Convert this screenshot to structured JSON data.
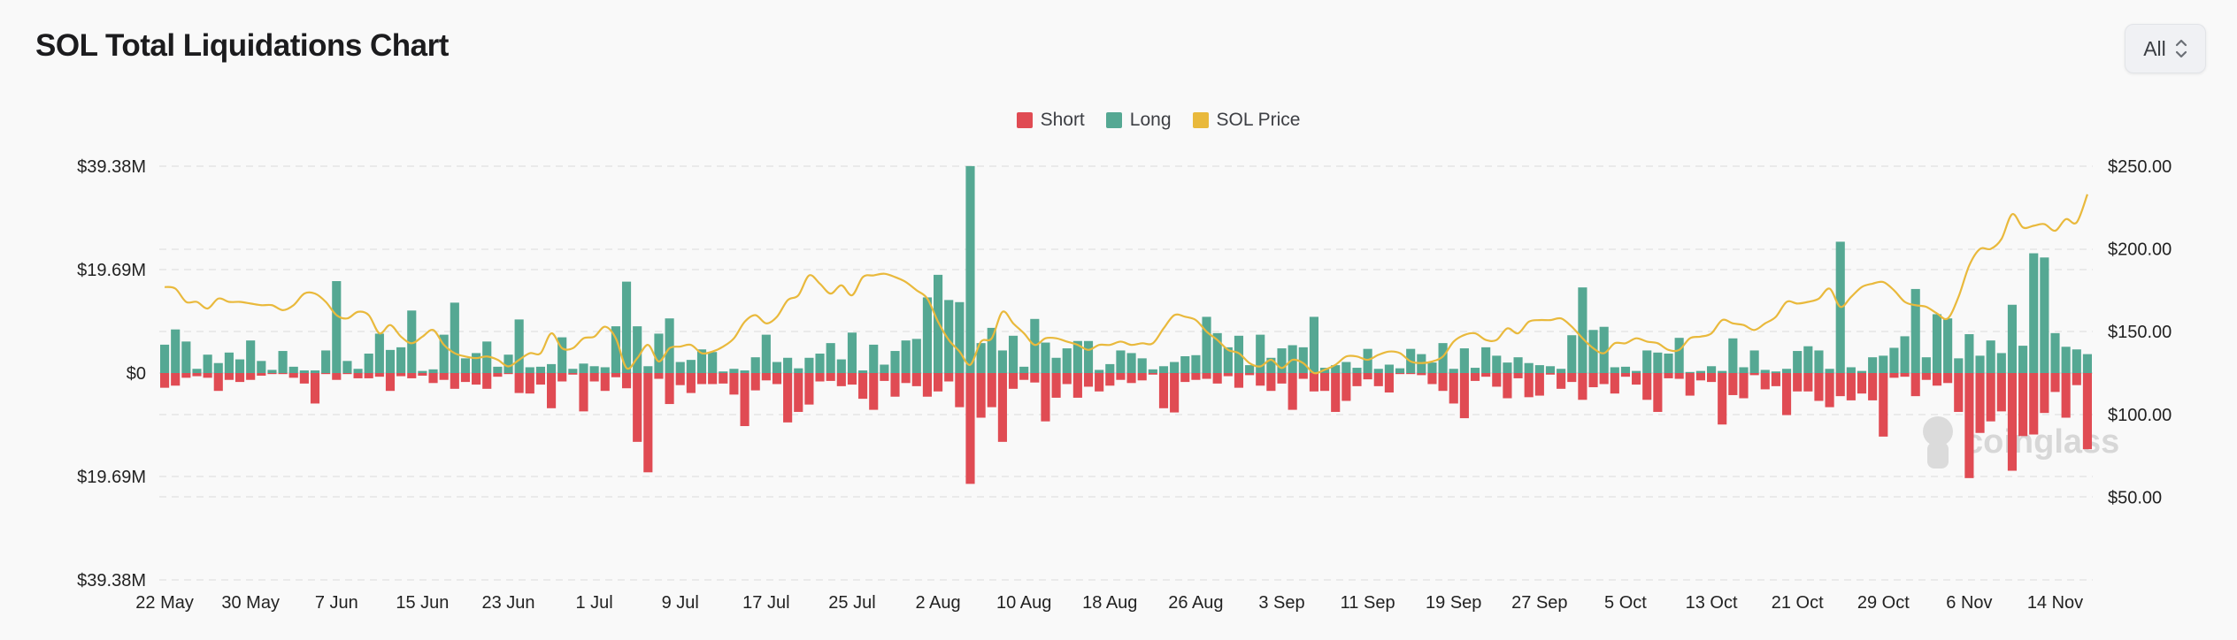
{
  "header": {
    "title": "SOL Total Liquidations Chart",
    "range_select": {
      "value": "All",
      "icon": "chevron-up-down-icon"
    }
  },
  "colors": {
    "short": "#e04b53",
    "long": "#55a893",
    "price": "#e9b93c",
    "grid": "#e6e6e6",
    "background": "#f9f9f9"
  },
  "chart_data": {
    "type": "bar",
    "title": "SOL Total Liquidations Chart",
    "legend": {
      "position": "top",
      "entries": [
        "Short",
        "Long",
        "SOL Price"
      ]
    },
    "grid": true,
    "x_start": "22 May",
    "x_ticks": [
      "22 May",
      "30 May",
      "7 Jun",
      "15 Jun",
      "23 Jun",
      "1 Jul",
      "9 Jul",
      "17 Jul",
      "25 Jul",
      "2 Aug",
      "10 Aug",
      "18 Aug",
      "26 Aug",
      "3 Sep",
      "11 Sep",
      "19 Sep",
      "27 Sep",
      "5 Oct",
      "13 Oct",
      "21 Oct",
      "29 Oct",
      "6 Nov",
      "14 Nov"
    ],
    "y_left": {
      "unit": "USD millions",
      "range": [
        -39.38,
        39.38
      ],
      "ticks": [
        39.38,
        19.69,
        0,
        -19.69,
        -39.38
      ],
      "tick_labels": [
        "$39.38M",
        "$19.69M",
        "$0",
        "$19.69M",
        "$39.38M"
      ]
    },
    "y_right": {
      "unit": "USD",
      "range": [
        0,
        250
      ],
      "ticks": [
        250,
        200,
        150,
        100,
        50
      ],
      "tick_labels": [
        "$250.00",
        "$200.00",
        "$150.00",
        "$100.00",
        "$50.00"
      ]
    },
    "series": [
      {
        "name": "Long",
        "type": "bar",
        "axis": "left",
        "values": [
          5.4,
          8.3,
          6.0,
          0.8,
          3.5,
          1.9,
          3.9,
          2.6,
          6.2,
          2.3,
          0.6,
          4.2,
          1.2,
          0.5,
          0.5,
          4.3,
          17.5,
          2.3,
          0.8,
          3.7,
          7.5,
          4.4,
          4.9,
          11.9,
          0.4,
          0.7,
          7.3,
          13.4,
          2.8,
          3.8,
          6.0,
          1.2,
          3.5,
          10.2,
          1.1,
          1.2,
          1.7,
          6.8,
          0.8,
          1.8,
          1.3,
          1.1,
          8.9,
          17.4,
          8.9,
          1.3,
          7.5,
          10.4,
          2.1,
          2.5,
          4.5,
          4.0,
          0.3,
          0.8,
          0.5,
          3.0,
          7.3,
          2.1,
          2.9,
          0.9,
          2.9,
          3.7,
          5.7,
          2.6,
          7.7,
          0.5,
          5.4,
          1.6,
          4.2,
          6.2,
          6.5,
          14.4,
          18.7,
          13.9,
          13.5,
          39.4,
          5.7,
          8.6,
          4.3,
          7.1,
          1.2,
          10.3,
          5.8,
          2.9,
          4.7,
          6.1,
          6.1,
          0.6,
          1.7,
          4.3,
          3.8,
          2.8,
          0.7,
          1.3,
          2.1,
          3.2,
          3.4,
          10.7,
          7.6,
          4.9,
          7.1,
          1.5,
          7.3,
          2.9,
          4.7,
          5.3,
          4.9,
          10.7,
          1.0,
          1.5,
          2.1,
          1.0,
          4.6,
          0.8,
          1.6,
          0.9,
          4.6,
          3.6,
          2.0,
          5.7,
          0.8,
          4.7,
          1.0,
          4.9,
          3.3,
          2.0,
          3.0,
          1.9,
          1.5,
          1.3,
          0.8,
          7.2,
          16.3,
          8.2,
          8.8,
          1.1,
          1.2,
          0.4,
          4.3,
          3.9,
          3.7,
          6.7,
          0.2,
          0.4,
          1.3,
          0.4,
          6.6,
          1.1,
          4.3,
          0.6,
          0.3,
          0.8,
          4.2,
          5.1,
          4.3,
          0.8,
          25.0,
          1.1,
          0.4,
          3.0,
          3.3,
          4.8,
          7.0,
          16.0,
          3.0,
          11.2,
          10.4,
          2.8,
          7.4,
          3.3,
          6.2,
          3.8,
          13.0,
          5.2,
          22.8,
          22.0,
          7.6,
          5.0,
          4.5,
          3.6
        ]
      },
      {
        "name": "Short",
        "type": "bar",
        "axis": "left",
        "values": [
          2.8,
          2.4,
          0.9,
          0.6,
          0.9,
          3.4,
          1.3,
          1.7,
          1.3,
          0.5,
          0.2,
          0.2,
          0.9,
          2.0,
          5.8,
          0.2,
          1.3,
          0.2,
          1.0,
          1.0,
          0.7,
          3.4,
          0.6,
          1.0,
          0.5,
          1.9,
          1.3,
          3.0,
          1.7,
          2.2,
          3.0,
          0.7,
          0.2,
          3.8,
          3.9,
          2.2,
          6.7,
          1.6,
          0.3,
          7.3,
          1.6,
          3.4,
          0.8,
          2.9,
          13.1,
          18.9,
          1.1,
          5.9,
          2.3,
          3.8,
          2.1,
          2.1,
          2.0,
          4.1,
          10.1,
          3.3,
          1.4,
          2.1,
          9.4,
          7.4,
          6.0,
          1.6,
          1.5,
          2.5,
          2.2,
          4.9,
          7.0,
          1.5,
          4.5,
          1.9,
          2.5,
          4.5,
          3.5,
          1.6,
          6.5,
          21.1,
          8.5,
          6.5,
          13.1,
          3.0,
          1.3,
          1.8,
          9.2,
          4.7,
          2.1,
          4.7,
          2.6,
          3.5,
          2.4,
          1.3,
          1.9,
          1.4,
          0.3,
          6.7,
          7.5,
          1.7,
          1.3,
          1.1,
          2.0,
          0.6,
          2.8,
          0.4,
          2.4,
          3.4,
          2.0,
          7.0,
          1.1,
          3.5,
          3.4,
          7.4,
          5.3,
          2.5,
          1.2,
          2.5,
          3.7,
          0.2,
          0.2,
          0.4,
          2.1,
          3.4,
          5.8,
          8.6,
          1.5,
          0.7,
          2.6,
          4.8,
          1.0,
          4.6,
          4.3,
          0.3,
          3.0,
          1.7,
          5.1,
          2.7,
          2.1,
          3.9,
          0.7,
          2.2,
          5.1,
          7.4,
          1.0,
          1.1,
          4.3,
          1.4,
          1.7,
          9.8,
          4.2,
          4.8,
          0.4,
          3.1,
          2.5,
          8.0,
          3.5,
          3.5,
          5.3,
          6.5,
          4.4,
          5.2,
          3.9,
          5.2,
          12.1,
          0.9,
          0.7,
          4.4,
          1.3,
          2.4,
          1.9,
          7.4,
          20.0,
          11.4,
          9.2,
          7.3,
          18.6,
          12.0,
          11.7,
          7.6,
          3.6,
          8.5,
          2.3,
          14.5
        ]
      },
      {
        "name": "SOL Price",
        "type": "line",
        "axis": "right",
        "values": [
          177,
          176,
          168,
          168,
          164,
          170,
          168,
          168,
          167,
          166,
          166,
          163,
          166,
          173,
          173,
          168,
          160,
          158,
          162,
          160,
          149,
          154,
          147,
          143,
          147,
          151,
          142,
          137,
          135,
          134,
          135,
          133,
          129,
          133,
          137,
          137,
          149,
          140,
          140,
          146,
          147,
          153,
          146,
          128,
          134,
          142,
          132,
          140,
          141,
          142,
          137,
          138,
          141,
          146,
          156,
          160,
          155,
          159,
          169,
          172,
          184,
          179,
          173,
          178,
          172,
          183,
          184,
          185,
          183,
          180,
          175,
          170,
          156,
          145,
          138,
          130,
          144,
          146,
          162,
          155,
          149,
          142,
          146,
          146,
          144,
          142,
          139,
          142,
          142,
          144,
          142,
          143,
          143,
          152,
          160,
          159,
          157,
          150,
          145,
          139,
          137,
          131,
          129,
          133,
          128,
          133,
          131,
          125,
          127,
          130,
          135,
          135,
          133,
          136,
          138,
          137,
          132,
          131,
          132,
          135,
          144,
          148,
          149,
          145,
          145,
          152,
          149,
          156,
          157,
          157,
          158,
          153,
          146,
          140,
          137,
          143,
          143,
          146,
          144,
          143,
          139,
          139,
          146,
          147,
          149,
          157,
          155,
          154,
          151,
          155,
          159,
          168,
          167,
          168,
          170,
          176,
          165,
          171,
          177,
          179,
          180,
          175,
          168,
          166,
          165,
          161,
          158,
          171,
          190,
          200,
          200,
          206,
          221,
          213,
          214,
          215,
          211,
          218,
          216,
          233
        ]
      }
    ]
  },
  "watermark": "coinglass"
}
